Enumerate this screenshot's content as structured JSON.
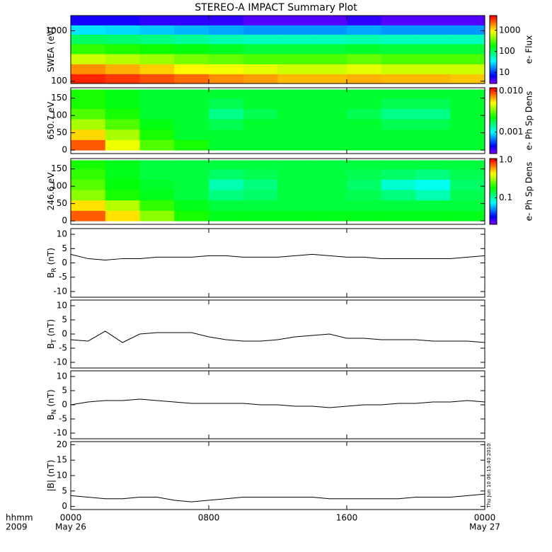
{
  "title": "STEREO-A IMPACT Summary Plot",
  "timestamp": "Thu Jun 10 06:15:40 2010",
  "x_axis": {
    "xlim": [
      0,
      24
    ],
    "xticks": [
      {
        "value": 0,
        "label": "0000"
      },
      {
        "value": 8,
        "label": "0800"
      },
      {
        "value": 16,
        "label": "1600"
      },
      {
        "value": 24,
        "label": "0000"
      }
    ],
    "dates": [
      {
        "value": 0,
        "label": "May 26"
      },
      {
        "value": 24,
        "label": "May 27"
      }
    ],
    "label": "hhmm",
    "year": "2009"
  },
  "chart_data": [
    {
      "type": "heatmap",
      "y_label": "SWEA (eV)",
      "log_y": true,
      "ylim": [
        90,
        2000
      ],
      "yticks": [
        100,
        1000
      ],
      "colorbar_label": "e- Flux",
      "clim": [
        3,
        5000
      ],
      "cticks": [
        10,
        100,
        1000
      ],
      "xbins": [
        0,
        2,
        4,
        6,
        8,
        10,
        12,
        14,
        16,
        18,
        20,
        22,
        24
      ],
      "ybins": [
        90,
        140,
        220,
        350,
        550,
        850,
        1300,
        2000
      ],
      "z": [
        [
          4000,
          3500,
          3000,
          2500,
          2000,
          1800,
          1500,
          1500,
          1600,
          1500,
          1500,
          1400
        ],
        [
          2000,
          1600,
          1300,
          1000,
          900,
          800,
          700,
          700,
          800,
          700,
          700,
          700
        ],
        [
          700,
          600,
          500,
          400,
          350,
          300,
          300,
          300,
          350,
          300,
          300,
          300
        ],
        [
          250,
          220,
          200,
          170,
          150,
          130,
          130,
          130,
          140,
          130,
          130,
          130
        ],
        [
          100,
          90,
          80,
          70,
          60,
          55,
          55,
          55,
          60,
          55,
          55,
          55
        ],
        [
          30,
          28,
          25,
          22,
          20,
          18,
          18,
          18,
          20,
          18,
          18,
          18
        ],
        [
          6,
          6,
          5,
          5,
          5,
          4,
          4,
          4,
          5,
          4,
          4,
          4
        ]
      ]
    },
    {
      "type": "heatmap",
      "y_label": "650.7 eV",
      "ylim": [
        -10,
        180
      ],
      "yticks": [
        0,
        50,
        100,
        150
      ],
      "colorbar_label": "e- Ph Sp Dens",
      "clim": [
        0.0003,
        0.012
      ],
      "cticks": [
        0.001,
        {
          "value": 0.01,
          "label": "0.010"
        }
      ],
      "xbins": [
        0,
        2,
        4,
        6,
        8,
        10,
        12,
        14,
        16,
        18,
        20,
        22,
        24
      ],
      "ybins": [
        0,
        30,
        60,
        90,
        120,
        150,
        175
      ],
      "z": [
        [
          0.009,
          0.005,
          0.003,
          0.0025,
          0.002,
          0.002,
          0.002,
          0.002,
          0.002,
          0.002,
          0.002,
          0.002
        ],
        [
          0.006,
          0.004,
          0.0025,
          0.002,
          0.002,
          0.002,
          0.002,
          0.002,
          0.002,
          0.002,
          0.002,
          0.002
        ],
        [
          0.004,
          0.003,
          0.0022,
          0.002,
          0.0018,
          0.002,
          0.002,
          0.002,
          0.002,
          0.0018,
          0.0018,
          0.002
        ],
        [
          0.003,
          0.0025,
          0.002,
          0.002,
          0.0015,
          0.0018,
          0.002,
          0.002,
          0.0018,
          0.0015,
          0.0015,
          0.002
        ],
        [
          0.0025,
          0.0022,
          0.002,
          0.002,
          0.0018,
          0.002,
          0.002,
          0.002,
          0.002,
          0.0018,
          0.0018,
          0.002
        ],
        [
          0.0025,
          0.0022,
          0.002,
          0.002,
          0.002,
          0.002,
          0.002,
          0.002,
          0.002,
          0.002,
          0.002,
          0.002
        ]
      ]
    },
    {
      "type": "heatmap",
      "y_label": "246.6 eV",
      "ylim": [
        -10,
        180
      ],
      "yticks": [
        0,
        50,
        100,
        150
      ],
      "colorbar_label": "e- Ph Sp Dens",
      "clim": [
        0.02,
        1.1
      ],
      "cticks": [
        0.1,
        {
          "value": 1,
          "label": "1.0"
        }
      ],
      "xbins": [
        0,
        2,
        4,
        6,
        8,
        10,
        12,
        14,
        16,
        18,
        20,
        22,
        24
      ],
      "ybins": [
        0,
        30,
        60,
        90,
        120,
        150,
        175
      ],
      "z": [
        [
          0.8,
          0.5,
          0.3,
          0.2,
          0.17,
          0.17,
          0.17,
          0.17,
          0.17,
          0.17,
          0.17,
          0.17
        ],
        [
          0.5,
          0.35,
          0.22,
          0.17,
          0.15,
          0.15,
          0.15,
          0.15,
          0.15,
          0.15,
          0.15,
          0.15
        ],
        [
          0.3,
          0.2,
          0.17,
          0.15,
          0.12,
          0.13,
          0.15,
          0.15,
          0.14,
          0.12,
          0.1,
          0.14
        ],
        [
          0.25,
          0.18,
          0.16,
          0.15,
          0.1,
          0.12,
          0.15,
          0.15,
          0.13,
          0.09,
          0.08,
          0.13
        ],
        [
          0.22,
          0.17,
          0.15,
          0.15,
          0.13,
          0.14,
          0.15,
          0.15,
          0.14,
          0.13,
          0.12,
          0.14
        ],
        [
          0.2,
          0.17,
          0.15,
          0.15,
          0.15,
          0.15,
          0.15,
          0.15,
          0.15,
          0.15,
          0.15,
          0.15
        ]
      ]
    },
    {
      "type": "line",
      "y_label": "B",
      "y_sub": "R",
      "y_unit": "(nT)",
      "ylim": [
        -12,
        12
      ],
      "yticks": [
        -10,
        -5,
        0,
        5,
        10
      ],
      "color": "#000000",
      "x": [
        0,
        1,
        2,
        3,
        4,
        5,
        6,
        7,
        8,
        9,
        10,
        11,
        12,
        13,
        14,
        15,
        16,
        17,
        18,
        19,
        20,
        21,
        22,
        23,
        24
      ],
      "values": [
        3,
        1.5,
        1,
        1.5,
        1.5,
        2,
        2,
        2,
        2.5,
        2.5,
        2,
        2,
        2,
        2.5,
        3,
        2.5,
        2,
        2,
        1.5,
        1.5,
        1.5,
        1.5,
        1.5,
        2,
        2.5
      ]
    },
    {
      "type": "line",
      "y_label": "B",
      "y_sub": "T",
      "y_unit": "(nT)",
      "ylim": [
        -12,
        12
      ],
      "yticks": [
        -10,
        -5,
        0,
        5,
        10
      ],
      "color": "#000000",
      "x": [
        0,
        1,
        2,
        3,
        4,
        5,
        6,
        7,
        8,
        9,
        10,
        11,
        12,
        13,
        14,
        15,
        16,
        17,
        18,
        19,
        20,
        21,
        22,
        23,
        24
      ],
      "values": [
        -2,
        -2.5,
        1,
        -3,
        0,
        0.5,
        0.5,
        0.5,
        -1,
        -2,
        -2.5,
        -2.5,
        -2,
        -1,
        -0.5,
        0,
        -1.5,
        -1.5,
        -2,
        -2,
        -2,
        -2.5,
        -2.5,
        -2.5,
        -3
      ]
    },
    {
      "type": "line",
      "y_label": "B",
      "y_sub": "N",
      "y_unit": "(nT)",
      "ylim": [
        -12,
        12
      ],
      "yticks": [
        -10,
        -5,
        0,
        5,
        10
      ],
      "color": "#000000",
      "x": [
        0,
        1,
        2,
        3,
        4,
        5,
        6,
        7,
        8,
        9,
        10,
        11,
        12,
        13,
        14,
        15,
        16,
        17,
        18,
        19,
        20,
        21,
        22,
        23,
        24
      ],
      "values": [
        0,
        1,
        1.5,
        1.5,
        2,
        1.5,
        1,
        0.5,
        0.5,
        0.5,
        0.5,
        0,
        0,
        -0.5,
        -0.5,
        -1,
        -0.5,
        0,
        0,
        0.5,
        0.5,
        1,
        1,
        1.5,
        1
      ]
    },
    {
      "type": "line",
      "y_label": "|B|",
      "y_unit": "(nT)",
      "ylim": [
        -1,
        21
      ],
      "yticks": [
        0,
        5,
        10,
        15,
        20
      ],
      "color": "#000000",
      "x": [
        0,
        1,
        2,
        3,
        4,
        5,
        6,
        7,
        8,
        9,
        10,
        11,
        12,
        13,
        14,
        15,
        16,
        17,
        18,
        19,
        20,
        21,
        22,
        23,
        24
      ],
      "values": [
        3.5,
        3,
        2.5,
        2.5,
        3,
        3,
        2,
        1.5,
        2,
        2.5,
        3,
        3,
        3,
        3,
        3,
        2.5,
        2.5,
        2.5,
        2.5,
        2.5,
        3,
        3,
        3,
        3.5,
        4
      ]
    }
  ]
}
